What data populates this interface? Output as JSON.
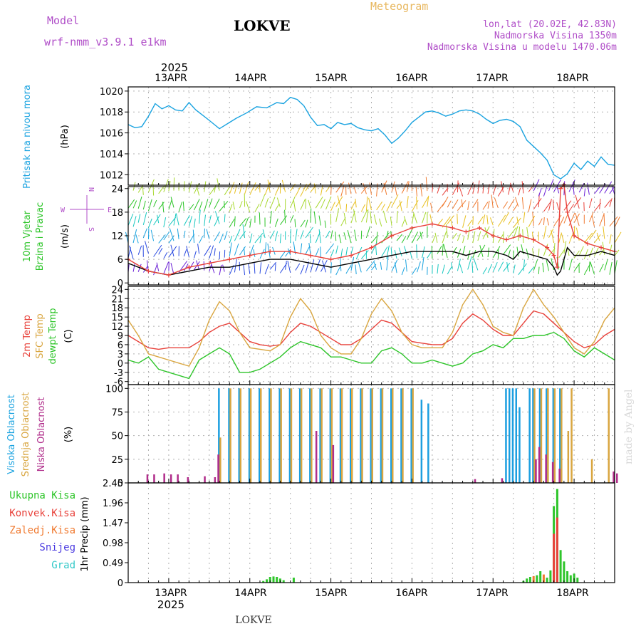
{
  "header": {
    "model_label": "Model",
    "model_name": "wrf-nmm_v3.9.1 e1km",
    "location": "LOKVE",
    "title": "Meteogram",
    "lonlat": "lon,lat (20.02E, 42.83N)",
    "elevation": "Nadmorska Visina 1350m",
    "model_elevation": "Nadmorska Visina u modelu 1470.06m",
    "watermark": "made by Angel",
    "footer_location": "LOKVE"
  },
  "time_axis": {
    "year": "2025",
    "days": [
      "13APR",
      "14APR",
      "15APR",
      "16APR",
      "17APR",
      "18APR"
    ],
    "start_hour": 0,
    "end_hour": 144
  },
  "colors": {
    "pressure": "#1aa3e0",
    "temp2m": "#e8413a",
    "sfc": "#d9a640",
    "dewpt": "#2ec52a",
    "high_cloud": "#1c9fe0",
    "mid_cloud": "#d9a640",
    "low_cloud": "#b02c8a",
    "total_precip": "#2ec52a",
    "conv_precip": "#e8413a",
    "frz_precip": "#f07a30",
    "snow": "#4a3ae0",
    "hail": "#32c8c8",
    "gust": "#e8413a",
    "wind_speed": "#000000"
  },
  "chart_data": [
    {
      "type": "line",
      "id": "pressure",
      "ylabel": [
        "Pritisak na nivou mora",
        "(hPa)"
      ],
      "ylim": [
        1011,
        1020.4
      ],
      "yticks": [
        1012,
        1014,
        1016,
        1018,
        1020
      ],
      "series": [
        {
          "color_key": "pressure",
          "x": [
            0,
            2,
            4,
            6,
            8,
            10,
            12,
            14,
            16,
            18,
            20,
            22,
            24,
            27,
            30,
            32,
            35,
            38,
            41,
            44,
            46,
            48,
            50,
            52,
            54,
            56,
            58,
            60,
            62,
            64,
            66,
            68,
            70,
            72,
            74,
            76,
            78,
            80,
            82,
            84,
            86,
            88,
            90,
            92,
            94,
            96,
            98,
            100,
            102,
            104,
            106,
            108,
            110,
            112,
            114,
            116,
            118,
            120,
            122,
            124,
            126,
            128,
            130,
            132,
            134,
            136,
            138,
            140,
            142,
            144
          ],
          "y": [
            1016.8,
            1016.5,
            1016.6,
            1017.6,
            1018.8,
            1018.3,
            1018.6,
            1018.2,
            1018.1,
            1018.9,
            1018.2,
            1017.7,
            1017.2,
            1016.4,
            1017.0,
            1017.4,
            1017.9,
            1018.5,
            1018.4,
            1018.9,
            1018.8,
            1019.4,
            1019.2,
            1018.6,
            1017.5,
            1016.7,
            1016.8,
            1016.4,
            1017.0,
            1016.8,
            1016.9,
            1016.5,
            1016.3,
            1016.2,
            1016.4,
            1015.8,
            1015.0,
            1015.5,
            1016.2,
            1017.0,
            1017.5,
            1018.0,
            1018.1,
            1017.9,
            1017.6,
            1017.8,
            1018.1,
            1018.2,
            1018.1,
            1017.8,
            1017.3,
            1016.9,
            1017.2,
            1017.3,
            1017.1,
            1016.6,
            1015.3,
            1014.7,
            1014.1,
            1013.4,
            1012.0,
            1011.6,
            1012.1,
            1013.1,
            1012.5,
            1013.3,
            1012.8,
            1013.7,
            1013.0,
            1012.9
          ]
        }
      ]
    },
    {
      "type": "line",
      "id": "wind",
      "ylabel": [
        "10m Vjetar",
        "Brzina i Pravac",
        "(m/s)"
      ],
      "compass": {
        "n": "N",
        "s": "S",
        "e": "E",
        "w": "W"
      },
      "ylim": [
        -0.5,
        24.5
      ],
      "yticks": [
        0,
        6,
        12,
        18,
        24
      ],
      "series": [
        {
          "name_key": "wind_speed",
          "color_key": "wind_speed",
          "x": [
            0,
            6,
            12,
            18,
            24,
            30,
            36,
            42,
            48,
            54,
            60,
            66,
            72,
            78,
            84,
            90,
            96,
            100,
            104,
            108,
            112,
            114,
            116,
            120,
            124,
            126,
            127,
            128,
            130,
            132,
            136,
            140,
            144
          ],
          "y": [
            5,
            3,
            2,
            3,
            4,
            4,
            5,
            6,
            6,
            5,
            4,
            5,
            6,
            7,
            8,
            8,
            8,
            7,
            8,
            8,
            7,
            6,
            8,
            7,
            6,
            4,
            2,
            3,
            9,
            7,
            7,
            8,
            7
          ]
        },
        {
          "name_key": "gust",
          "color_key": "gust",
          "x": [
            0,
            6,
            12,
            18,
            24,
            30,
            36,
            42,
            48,
            54,
            60,
            66,
            72,
            78,
            84,
            90,
            96,
            100,
            104,
            108,
            112,
            116,
            120,
            124,
            126,
            127,
            128,
            129,
            130,
            132,
            136,
            140,
            144
          ],
          "y": [
            6,
            3,
            2,
            4,
            5,
            6,
            7,
            8,
            8,
            7,
            6,
            7,
            9,
            12,
            14,
            15,
            14,
            13,
            14,
            12,
            11,
            12,
            11,
            9,
            7,
            4,
            24,
            25,
            18,
            12,
            10,
            9,
            8
          ]
        }
      ]
    },
    {
      "type": "line",
      "id": "temperature",
      "ylabel": [
        "2m Temp",
        "SFC Temp",
        "dewpt Temp",
        "(C)"
      ],
      "ylim": [
        -7,
        25
      ],
      "yticks": [
        -6,
        -3,
        0,
        3,
        6,
        9,
        12,
        15,
        18,
        21,
        24
      ],
      "series": [
        {
          "name_key": "temp2m",
          "color_key": "temp2m",
          "x": [
            0,
            3,
            6,
            9,
            12,
            15,
            18,
            21,
            24,
            27,
            30,
            33,
            36,
            39,
            42,
            45,
            48,
            51,
            54,
            57,
            60,
            63,
            66,
            69,
            72,
            75,
            78,
            81,
            84,
            87,
            90,
            93,
            96,
            99,
            102,
            105,
            108,
            111,
            114,
            117,
            120,
            123,
            126,
            129,
            132,
            135,
            138,
            141,
            144
          ],
          "y": [
            9,
            7,
            5,
            4.5,
            5,
            5,
            5,
            7,
            10,
            12,
            13,
            10,
            7,
            6,
            5.5,
            6,
            10,
            13,
            12,
            10,
            8,
            6,
            6,
            8,
            11,
            14,
            13,
            10,
            7,
            6.5,
            6,
            6,
            8,
            13,
            16,
            14,
            11,
            9,
            9,
            13,
            17,
            16,
            13,
            10,
            7,
            5,
            6,
            9,
            11
          ]
        },
        {
          "name_key": "sfc",
          "color_key": "sfc",
          "x": [
            0,
            3,
            6,
            9,
            12,
            15,
            18,
            21,
            24,
            27,
            30,
            33,
            36,
            39,
            42,
            45,
            48,
            51,
            54,
            57,
            60,
            63,
            66,
            69,
            72,
            75,
            78,
            81,
            84,
            87,
            90,
            93,
            96,
            99,
            102,
            105,
            108,
            111,
            114,
            117,
            120,
            123,
            126,
            129,
            132,
            135,
            138,
            141,
            144
          ],
          "y": [
            14,
            9,
            3,
            2,
            1,
            0,
            -1,
            5,
            14,
            20,
            17,
            10,
            5,
            4.5,
            4,
            6,
            15,
            21,
            17,
            9,
            5,
            3,
            3,
            8,
            16,
            21,
            17,
            10,
            6,
            5,
            5,
            5,
            10,
            19,
            24,
            19,
            12,
            10,
            9,
            18,
            24,
            19,
            15,
            10,
            5,
            3,
            7,
            14,
            18
          ]
        },
        {
          "name_key": "dewpt",
          "color_key": "dewpt",
          "x": [
            0,
            3,
            6,
            9,
            12,
            15,
            18,
            21,
            24,
            27,
            30,
            33,
            36,
            39,
            42,
            45,
            48,
            51,
            54,
            57,
            60,
            63,
            66,
            69,
            72,
            75,
            78,
            81,
            84,
            87,
            90,
            93,
            96,
            99,
            102,
            105,
            108,
            111,
            114,
            117,
            120,
            123,
            126,
            129,
            132,
            135,
            138,
            141,
            144
          ],
          "y": [
            1,
            0,
            2,
            -2,
            -3,
            -4,
            -5,
            1,
            3,
            5,
            3,
            -3,
            -3,
            -2,
            0,
            2,
            5,
            7,
            6,
            5,
            2,
            2,
            1,
            0,
            0,
            4,
            5,
            3,
            0,
            0,
            1,
            0,
            -1,
            0,
            3,
            4,
            6,
            5,
            8,
            8,
            9,
            9,
            10,
            8,
            4,
            2,
            5,
            3,
            1
          ]
        }
      ]
    },
    {
      "type": "bar",
      "id": "cloud",
      "ylabel": [
        "Visoka Oblacnost",
        "Srednja Oblacnost",
        "Niska Oblacnost",
        "(%)"
      ],
      "ylim": [
        0,
        104
      ],
      "yticks": [
        0,
        25,
        50,
        75,
        100
      ],
      "series": [
        {
          "name_key": "high_cloud",
          "color_key": "high_cloud",
          "x": [
            27,
            30,
            33,
            36,
            39,
            42,
            45,
            48,
            51,
            54,
            57,
            60,
            63,
            66,
            69,
            72,
            75,
            78,
            81,
            84,
            87,
            89,
            90,
            112,
            113,
            114,
            115,
            116,
            119,
            120,
            122,
            124,
            126,
            128
          ],
          "y": [
            100,
            100,
            100,
            100,
            100,
            100,
            100,
            100,
            100,
            100,
            100,
            100,
            100,
            100,
            100,
            100,
            100,
            100,
            100,
            100,
            88,
            84,
            0,
            100,
            100,
            100,
            100,
            80,
            100,
            100,
            100,
            100,
            100,
            100
          ]
        },
        {
          "name_key": "mid_cloud",
          "color_key": "mid_cloud",
          "x": [
            27,
            30,
            33,
            36,
            39,
            42,
            45,
            48,
            51,
            54,
            57,
            60,
            63,
            66,
            69,
            72,
            75,
            78,
            81,
            84,
            120,
            122,
            124,
            126,
            128,
            130,
            131,
            137,
            142
          ],
          "y": [
            48,
            100,
            100,
            100,
            100,
            100,
            100,
            100,
            100,
            100,
            100,
            100,
            100,
            100,
            100,
            100,
            100,
            100,
            100,
            100,
            100,
            100,
            100,
            100,
            100,
            55,
            100,
            25,
            100
          ]
        },
        {
          "name_key": "low_cloud",
          "color_key": "low_cloud",
          "x": [
            5,
            7,
            10,
            12,
            14,
            17,
            22,
            25,
            26,
            55,
            60,
            102,
            110,
            120,
            121,
            123,
            125,
            127,
            143,
            144
          ],
          "y": [
            9,
            9,
            10,
            9,
            9,
            6,
            7,
            6,
            30,
            55,
            40,
            4,
            5,
            25,
            38,
            30,
            22,
            15,
            12,
            10
          ]
        }
      ]
    },
    {
      "type": "bar",
      "id": "precip",
      "ylabel": [
        "1hr Precip (mm)"
      ],
      "ylim": [
        0,
        2.45
      ],
      "ytick_labels": [
        "0",
        "0.49",
        "0.98",
        "1.47",
        "1.96",
        "2.45"
      ],
      "legend": [
        {
          "label": "Ukupna Kisa",
          "color_key": "total_precip"
        },
        {
          "label": "Konvek.Kisa",
          "color_key": "conv_precip"
        },
        {
          "label": "Zaledj.Kisa",
          "color_key": "frz_precip"
        },
        {
          "label": "Snijeg",
          "color_key": "snow"
        },
        {
          "label": "Grad",
          "color_key": "hail"
        }
      ],
      "series": [
        {
          "name_key": "total_precip",
          "color_key": "total_precip",
          "x": [
            40,
            41,
            42,
            43,
            44,
            45,
            46,
            49,
            117,
            118,
            119,
            121,
            122,
            124,
            125,
            126,
            127,
            128,
            129,
            130,
            131,
            132,
            133
          ],
          "y": [
            0.04,
            0.08,
            0.14,
            0.15,
            0.14,
            0.1,
            0.06,
            0.12,
            0.04,
            0.1,
            0.14,
            0.18,
            0.28,
            0.12,
            0.3,
            1.88,
            2.3,
            0.8,
            0.52,
            0.28,
            0.18,
            0.22,
            0.12
          ]
        },
        {
          "name_key": "conv_precip",
          "color_key": "conv_precip",
          "x": [
            126,
            127
          ],
          "y": [
            1.2,
            1.6
          ]
        },
        {
          "name_key": "frz_precip",
          "color_key": "frz_precip",
          "x": [
            120,
            123
          ],
          "y": [
            0.16,
            0.2
          ]
        }
      ]
    }
  ]
}
